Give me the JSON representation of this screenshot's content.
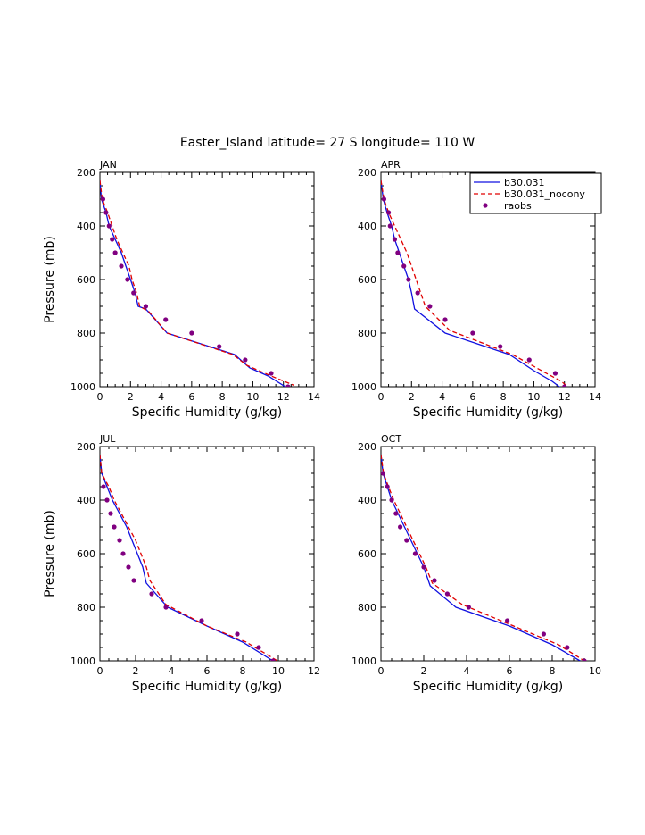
{
  "title": "Easter_Island  latitude= 27 S longitude= 110 W",
  "colors": {
    "model": "#1010e0",
    "nocony": "#e00000",
    "raobs": "#800080"
  },
  "legend": {
    "entries": [
      "b30.031",
      "b30.031_nocony",
      "raobs"
    ],
    "placement": "top-right of APR panel"
  },
  "chart_data": [
    {
      "type": "line",
      "label": "JAN",
      "xlabel": "Specific Humidity (g/kg)",
      "ylabel": "Pressure (mb)",
      "xlim": [
        0,
        14
      ],
      "ylim": [
        1000,
        200
      ],
      "xticks": [
        "0",
        "2",
        "4",
        "6",
        "8",
        "10",
        "12",
        "14"
      ],
      "yticks": [
        "200",
        "400",
        "600",
        "800",
        "1000"
      ],
      "series": [
        {
          "name": "b30.031",
          "style": "solid",
          "points": [
            [
              0,
              230
            ],
            [
              0.1,
              300
            ],
            [
              0.4,
              350
            ],
            [
              0.6,
              400
            ],
            [
              1.0,
              450
            ],
            [
              1.4,
              500
            ],
            [
              1.7,
              550
            ],
            [
              2.0,
              600
            ],
            [
              2.3,
              650
            ],
            [
              2.5,
              700
            ],
            [
              3.0,
              710
            ],
            [
              4.4,
              800
            ],
            [
              8.8,
              880
            ],
            [
              9.8,
              930
            ],
            [
              11.0,
              960
            ],
            [
              12.4,
              1010
            ]
          ]
        },
        {
          "name": "b30.031_nocony",
          "style": "dashed",
          "points": [
            [
              0,
              230
            ],
            [
              0.15,
              300
            ],
            [
              0.5,
              350
            ],
            [
              0.8,
              400
            ],
            [
              1.1,
              450
            ],
            [
              1.5,
              500
            ],
            [
              1.9,
              550
            ],
            [
              2.1,
              600
            ],
            [
              2.4,
              650
            ],
            [
              2.6,
              700
            ],
            [
              3.2,
              720
            ],
            [
              4.4,
              800
            ],
            [
              8.7,
              880
            ],
            [
              9.6,
              920
            ],
            [
              11.2,
              960
            ],
            [
              12.7,
              995
            ]
          ]
        },
        {
          "name": "raobs",
          "style": "dots",
          "points": [
            [
              0.2,
              300
            ],
            [
              0.4,
              350
            ],
            [
              0.6,
              400
            ],
            [
              0.8,
              450
            ],
            [
              1.0,
              500
            ],
            [
              1.4,
              550
            ],
            [
              1.8,
              600
            ],
            [
              2.2,
              650
            ],
            [
              3.0,
              700
            ],
            [
              4.3,
              750
            ],
            [
              6.0,
              800
            ],
            [
              7.8,
              850
            ],
            [
              9.5,
              900
            ],
            [
              11.2,
              950
            ],
            [
              12.3,
              1000
            ]
          ]
        }
      ]
    },
    {
      "type": "line",
      "label": "APR",
      "xlabel": "Specific Humidity (g/kg)",
      "ylabel": "",
      "xlim": [
        0,
        14
      ],
      "ylim": [
        1000,
        200
      ],
      "xticks": [
        "0",
        "2",
        "4",
        "6",
        "8",
        "10",
        "12",
        "14"
      ],
      "yticks": [
        "200",
        "400",
        "600",
        "800",
        "1000"
      ],
      "series": [
        {
          "name": "b30.031",
          "style": "solid",
          "points": [
            [
              0,
              230
            ],
            [
              0.15,
              300
            ],
            [
              0.4,
              350
            ],
            [
              0.7,
              400
            ],
            [
              0.9,
              450
            ],
            [
              1.2,
              500
            ],
            [
              1.5,
              550
            ],
            [
              1.8,
              600
            ],
            [
              2.0,
              650
            ],
            [
              2.2,
              710
            ],
            [
              4.2,
              800
            ],
            [
              8.4,
              880
            ],
            [
              10.0,
              940
            ],
            [
              11.2,
              980
            ],
            [
              11.9,
              1010
            ]
          ]
        },
        {
          "name": "b30.031_nocony",
          "style": "dashed",
          "points": [
            [
              0,
              230
            ],
            [
              0.2,
              300
            ],
            [
              0.5,
              350
            ],
            [
              0.9,
              400
            ],
            [
              1.3,
              450
            ],
            [
              1.7,
              500
            ],
            [
              2.0,
              550
            ],
            [
              2.3,
              600
            ],
            [
              2.6,
              650
            ],
            [
              2.9,
              700
            ],
            [
              4.5,
              790
            ],
            [
              8.6,
              880
            ],
            [
              10.5,
              940
            ],
            [
              11.8,
              980
            ],
            [
              12.4,
              1010
            ]
          ]
        },
        {
          "name": "raobs",
          "style": "dots",
          "points": [
            [
              0.2,
              300
            ],
            [
              0.5,
              350
            ],
            [
              0.6,
              400
            ],
            [
              0.9,
              450
            ],
            [
              1.1,
              500
            ],
            [
              1.5,
              550
            ],
            [
              1.8,
              600
            ],
            [
              2.4,
              650
            ],
            [
              3.2,
              700
            ],
            [
              4.2,
              750
            ],
            [
              6.0,
              800
            ],
            [
              7.8,
              850
            ],
            [
              9.7,
              900
            ],
            [
              11.4,
              950
            ],
            [
              12.0,
              1000
            ]
          ]
        }
      ]
    },
    {
      "type": "line",
      "label": "JUL",
      "xlabel": "Specific Humidity (g/kg)",
      "ylabel": "Pressure (mb)",
      "xlim": [
        0,
        12
      ],
      "ylim": [
        1000,
        200
      ],
      "xticks": [
        "0",
        "2",
        "4",
        "6",
        "8",
        "10",
        "12"
      ],
      "yticks": [
        "200",
        "400",
        "600",
        "800",
        "1000"
      ],
      "series": [
        {
          "name": "b30.031",
          "style": "solid",
          "points": [
            [
              0,
              230
            ],
            [
              0.1,
              300
            ],
            [
              0.4,
              350
            ],
            [
              0.7,
              400
            ],
            [
              1.1,
              450
            ],
            [
              1.5,
              500
            ],
            [
              1.8,
              550
            ],
            [
              2.1,
              600
            ],
            [
              2.4,
              650
            ],
            [
              2.6,
              710
            ],
            [
              3.8,
              800
            ],
            [
              6.0,
              870
            ],
            [
              8.0,
              930
            ],
            [
              9.7,
              1000
            ]
          ]
        },
        {
          "name": "b30.031_nocony",
          "style": "dashed",
          "points": [
            [
              0,
              230
            ],
            [
              0.1,
              300
            ],
            [
              0.5,
              350
            ],
            [
              0.8,
              400
            ],
            [
              1.2,
              450
            ],
            [
              1.6,
              500
            ],
            [
              2.0,
              550
            ],
            [
              2.3,
              600
            ],
            [
              2.6,
              650
            ],
            [
              2.8,
              700
            ],
            [
              3.7,
              790
            ],
            [
              6.0,
              870
            ],
            [
              8.2,
              930
            ],
            [
              10.2,
              1010
            ]
          ]
        },
        {
          "name": "raobs",
          "style": "dots",
          "points": [
            [
              0.2,
              350
            ],
            [
              0.4,
              400
            ],
            [
              0.6,
              450
            ],
            [
              0.8,
              500
            ],
            [
              1.1,
              550
            ],
            [
              1.3,
              600
            ],
            [
              1.6,
              650
            ],
            [
              1.9,
              700
            ],
            [
              2.9,
              750
            ],
            [
              3.7,
              800
            ],
            [
              5.7,
              850
            ],
            [
              7.7,
              900
            ],
            [
              8.9,
              950
            ],
            [
              9.7,
              1000
            ]
          ]
        }
      ]
    },
    {
      "type": "line",
      "label": "OCT",
      "xlabel": "Specific Humidity (g/kg)",
      "ylabel": "",
      "xlim": [
        0,
        10
      ],
      "ylim": [
        1000,
        200
      ],
      "xticks": [
        "0",
        "2",
        "4",
        "6",
        "8",
        "10"
      ],
      "yticks": [
        "200",
        "400",
        "600",
        "800",
        "1000"
      ],
      "series": [
        {
          "name": "b30.031",
          "style": "solid",
          "points": [
            [
              0,
              230
            ],
            [
              0.1,
              300
            ],
            [
              0.3,
              350
            ],
            [
              0.5,
              400
            ],
            [
              0.8,
              450
            ],
            [
              1.1,
              500
            ],
            [
              1.4,
              550
            ],
            [
              1.7,
              600
            ],
            [
              2.0,
              650
            ],
            [
              2.3,
              720
            ],
            [
              3.5,
              800
            ],
            [
              6.0,
              870
            ],
            [
              8.0,
              940
            ],
            [
              9.3,
              1000
            ]
          ]
        },
        {
          "name": "b30.031_nocony",
          "style": "dashed",
          "points": [
            [
              0,
              230
            ],
            [
              0.12,
              300
            ],
            [
              0.35,
              350
            ],
            [
              0.6,
              400
            ],
            [
              0.9,
              450
            ],
            [
              1.2,
              500
            ],
            [
              1.5,
              550
            ],
            [
              1.8,
              600
            ],
            [
              2.1,
              650
            ],
            [
              2.4,
              710
            ],
            [
              3.8,
              790
            ],
            [
              6.2,
              870
            ],
            [
              8.3,
              940
            ],
            [
              9.6,
              1005
            ]
          ]
        },
        {
          "name": "raobs",
          "style": "dots",
          "points": [
            [
              0.1,
              300
            ],
            [
              0.3,
              350
            ],
            [
              0.5,
              400
            ],
            [
              0.7,
              450
            ],
            [
              0.9,
              500
            ],
            [
              1.2,
              550
            ],
            [
              1.6,
              600
            ],
            [
              2.0,
              650
            ],
            [
              2.5,
              700
            ],
            [
              3.1,
              750
            ],
            [
              4.1,
              800
            ],
            [
              5.9,
              850
            ],
            [
              7.6,
              900
            ],
            [
              8.7,
              950
            ],
            [
              9.5,
              1000
            ]
          ]
        }
      ]
    }
  ]
}
